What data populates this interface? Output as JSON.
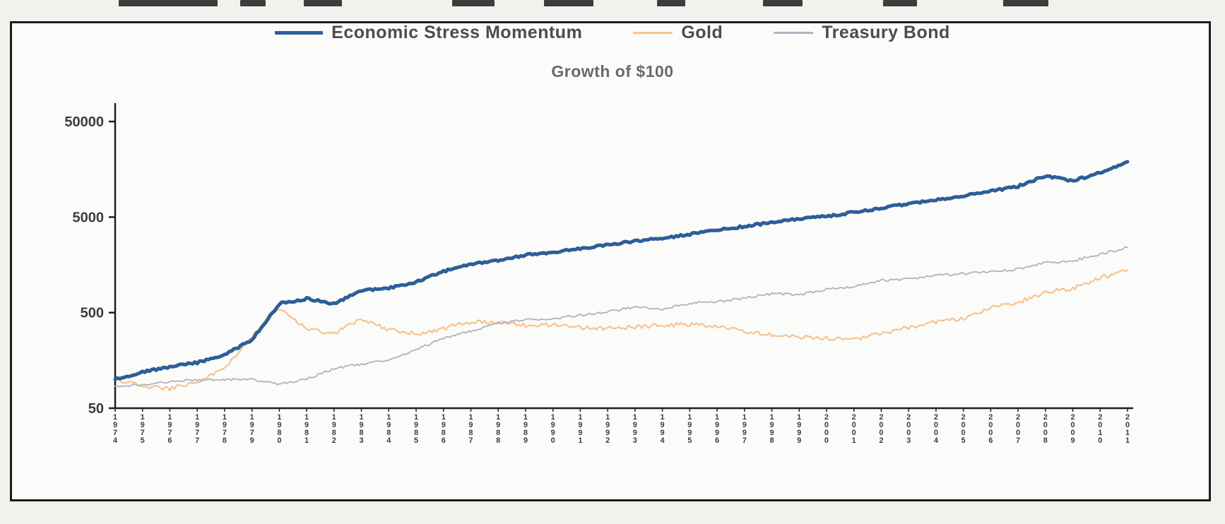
{
  "page": {
    "background": "#f3f1ee"
  },
  "chart_data": {
    "type": "line",
    "title": "Growth of $100",
    "legend_position": "top",
    "grid": false,
    "y_scale": "log",
    "y_ticks": [
      50,
      500,
      5000,
      50000
    ],
    "ylim": [
      50,
      80000
    ],
    "x": [
      1974,
      1975,
      1976,
      1977,
      1978,
      1979,
      1980,
      1981,
      1982,
      1983,
      1984,
      1985,
      1986,
      1987,
      1988,
      1989,
      1990,
      1991,
      1992,
      1993,
      1994,
      1995,
      1996,
      1997,
      1998,
      1999,
      2000,
      2001,
      2002,
      2003,
      2004,
      2005,
      2006,
      2007,
      2008,
      2009,
      2010,
      2011
    ],
    "series": [
      {
        "name": "Economic Stress Momentum",
        "color": "#2e5e96",
        "width": 5,
        "values": [
          100,
          120,
          135,
          150,
          180,
          260,
          620,
          700,
          620,
          850,
          900,
          1050,
          1350,
          1600,
          1750,
          2000,
          2150,
          2350,
          2550,
          2800,
          3000,
          3300,
          3650,
          4000,
          4400,
          4800,
          5100,
          5600,
          6200,
          6900,
          7600,
          8400,
          9300,
          10500,
          13500,
          12000,
          14500,
          19000
        ]
      },
      {
        "name": "Gold",
        "color": "#f6c392",
        "width": 2.2,
        "values": [
          100,
          85,
          80,
          95,
          130,
          280,
          560,
          340,
          300,
          430,
          330,
          300,
          340,
          400,
          400,
          370,
          370,
          350,
          340,
          355,
          370,
          375,
          365,
          320,
          290,
          280,
          270,
          265,
          300,
          350,
          400,
          430,
          570,
          640,
          820,
          900,
          1150,
          1400
        ]
      },
      {
        "name": "Treasury Bond",
        "color": "#b3b0c0",
        "width": 1.8,
        "values": [
          85,
          88,
          95,
          98,
          100,
          100,
          90,
          100,
          130,
          145,
          160,
          205,
          270,
          320,
          390,
          420,
          430,
          470,
          510,
          570,
          545,
          630,
          650,
          710,
          790,
          770,
          870,
          940,
          1080,
          1130,
          1220,
          1280,
          1330,
          1430,
          1680,
          1730,
          2050,
          2400
        ]
      }
    ]
  }
}
